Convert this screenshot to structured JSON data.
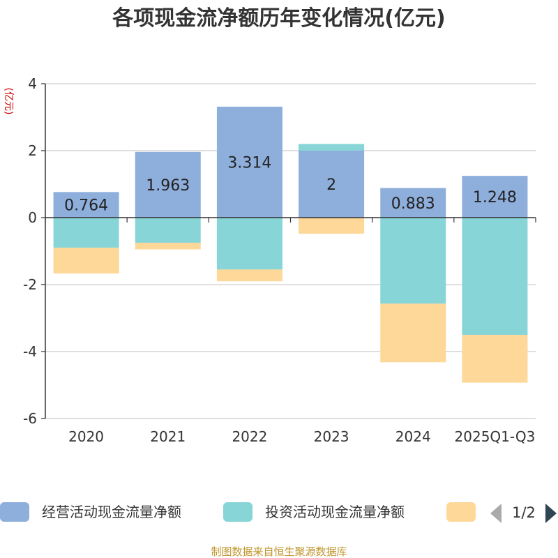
{
  "chart_data": {
    "type": "bar",
    "stacked": true,
    "title": "各项现金流净额历年变化情况(亿元)",
    "ylabel": "(亿元)",
    "xlabel": "",
    "ylim": [
      -6,
      4
    ],
    "yticks": [
      4,
      2,
      0,
      -2,
      -4,
      -6
    ],
    "grid": true,
    "categories": [
      "2020",
      "2021",
      "2022",
      "2023",
      "2024",
      "2025Q1-Q3"
    ],
    "series": [
      {
        "name": "经营活动现金流量净额",
        "color": "#8eaedb",
        "values": [
          0.764,
          1.963,
          3.314,
          2.0,
          0.883,
          1.248
        ],
        "labels": [
          "0.764",
          "1.963",
          "3.314",
          "2",
          "0.883",
          "1.248"
        ]
      },
      {
        "name": "投资活动现金流量净额",
        "color": "#88d5d8",
        "values": [
          -0.9,
          -0.75,
          -1.55,
          0.2,
          -2.57,
          -3.5
        ]
      },
      {
        "name": "",
        "color": "#fdd898",
        "values": [
          -0.77,
          -0.2,
          -0.35,
          -0.48,
          -1.75,
          -1.43
        ]
      }
    ],
    "legend_position": "bottom",
    "legend_page": "1/2"
  },
  "source_text": "制图数据来自恒生聚源数据库"
}
